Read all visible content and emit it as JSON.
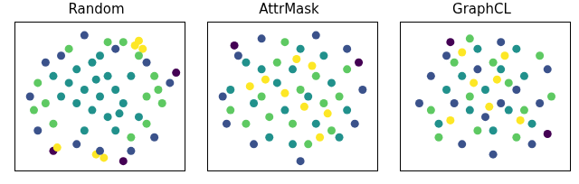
{
  "chart_data": [
    {
      "type": "scatter",
      "title": "Random",
      "xlim": [
        -110,
        110
      ],
      "ylim": [
        -110,
        110
      ],
      "tick_labels": false,
      "grid": false,
      "series": [
        {
          "color": "#21918c",
          "values": [
            [
              -30,
              40
            ],
            [
              -10,
              50
            ],
            [
              10,
              30
            ],
            [
              -20,
              10
            ],
            [
              0,
              0
            ],
            [
              20,
              10
            ],
            [
              -40,
              20
            ],
            [
              30,
              -10
            ],
            [
              10,
              -30
            ],
            [
              -10,
              -20
            ],
            [
              -30,
              -10
            ],
            [
              -50,
              0
            ],
            [
              40,
              30
            ],
            [
              0,
              60
            ],
            [
              20,
              -50
            ],
            [
              -20,
              -50
            ],
            [
              50,
              -30
            ],
            [
              -60,
              30
            ],
            [
              -5,
              25
            ],
            [
              25,
              -25
            ]
          ]
        },
        {
          "color": "#5ec962",
          "values": [
            [
              -80,
              20
            ],
            [
              -70,
              -10
            ],
            [
              -60,
              -40
            ],
            [
              60,
              0
            ],
            [
              70,
              30
            ],
            [
              80,
              -10
            ],
            [
              60,
              -40
            ],
            [
              40,
              -60
            ],
            [
              10,
              80
            ],
            [
              -40,
              70
            ],
            [
              -85,
              -20
            ],
            [
              50,
              60
            ],
            [
              30,
              80
            ],
            [
              75,
              10
            ]
          ]
        },
        {
          "color": "#3b528b",
          "values": [
            [
              -50,
              60
            ],
            [
              -70,
              50
            ],
            [
              20,
              70
            ],
            [
              60,
              50
            ],
            [
              -30,
              -70
            ],
            [
              0,
              -80
            ],
            [
              -80,
              -50
            ],
            [
              90,
              20
            ],
            [
              40,
              -80
            ],
            [
              -90,
              0
            ],
            [
              70,
              -60
            ],
            [
              -20,
              90
            ]
          ]
        },
        {
          "color": "#fde725",
          "values": [
            [
              45,
              75
            ],
            [
              55,
              70
            ],
            [
              50,
              82
            ],
            [
              -5,
              -85
            ],
            [
              5,
              -90
            ],
            [
              -55,
              -75
            ]
          ]
        },
        {
          "color": "#440154",
          "values": [
            [
              98,
              35
            ],
            [
              -60,
              -80
            ],
            [
              30,
              -95
            ]
          ]
        }
      ]
    },
    {
      "type": "scatter",
      "title": "AttrMask",
      "xlim": [
        -110,
        110
      ],
      "ylim": [
        -110,
        110
      ],
      "tick_labels": false,
      "grid": false,
      "series": [
        {
          "color": "#21918c",
          "values": [
            [
              -40,
              40
            ],
            [
              -20,
              20
            ],
            [
              0,
              40
            ],
            [
              20,
              0
            ],
            [
              -10,
              -20
            ],
            [
              30,
              -40
            ],
            [
              -50,
              -10
            ],
            [
              10,
              70
            ],
            [
              -60,
              50
            ],
            [
              50,
              20
            ],
            [
              40,
              60
            ],
            [
              -30,
              -60
            ],
            [
              0,
              -70
            ],
            [
              70,
              -20
            ],
            [
              -80,
              10
            ],
            [
              60,
              -60
            ]
          ]
        },
        {
          "color": "#5ec962",
          "values": [
            [
              -20,
              50
            ],
            [
              10,
              10
            ],
            [
              30,
              30
            ],
            [
              -40,
              0
            ],
            [
              0,
              -40
            ],
            [
              40,
              -10
            ],
            [
              -60,
              -40
            ],
            [
              20,
              -70
            ],
            [
              -10,
              80
            ],
            [
              70,
              40
            ],
            [
              -80,
              -20
            ],
            [
              60,
              0
            ],
            [
              -30,
              -30
            ],
            [
              50,
              -50
            ]
          ]
        },
        {
          "color": "#3b528b",
          "values": [
            [
              -70,
              60
            ],
            [
              -90,
              0
            ],
            [
              -50,
              -70
            ],
            [
              80,
              -40
            ],
            [
              90,
              10
            ],
            [
              30,
              90
            ],
            [
              -40,
              85
            ],
            [
              10,
              -95
            ],
            [
              70,
              70
            ],
            [
              -85,
              -40
            ]
          ]
        },
        {
          "color": "#fde725",
          "values": [
            [
              -10,
              5
            ],
            [
              15,
              -15
            ],
            [
              25,
              45
            ],
            [
              -35,
              25
            ],
            [
              45,
              -25
            ],
            [
              5,
              55
            ],
            [
              -55,
              15
            ],
            [
              35,
              -60
            ]
          ]
        },
        {
          "color": "#440154",
          "values": [
            [
              -75,
              75
            ],
            [
              85,
              50
            ]
          ]
        }
      ]
    },
    {
      "type": "scatter",
      "title": "GraphCL",
      "xlim": [
        -110,
        110
      ],
      "ylim": [
        -110,
        110
      ],
      "tick_labels": false,
      "grid": false,
      "series": [
        {
          "color": "#21918c",
          "values": [
            [
              -30,
              30
            ],
            [
              0,
              10
            ],
            [
              20,
              40
            ],
            [
              -20,
              -20
            ],
            [
              30,
              -20
            ],
            [
              -50,
              10
            ],
            [
              10,
              -50
            ],
            [
              50,
              30
            ],
            [
              -10,
              70
            ],
            [
              60,
              -40
            ],
            [
              -60,
              -40
            ],
            [
              40,
              70
            ]
          ]
        },
        {
          "color": "#3b528b",
          "values": [
            [
              -10,
              40
            ],
            [
              20,
              -10
            ],
            [
              -40,
              -10
            ],
            [
              0,
              -30
            ],
            [
              40,
              10
            ],
            [
              -70,
              30
            ],
            [
              70,
              -10
            ],
            [
              -30,
              -70
            ],
            [
              20,
              80
            ],
            [
              -50,
              60
            ],
            [
              80,
              40
            ],
            [
              10,
              -85
            ],
            [
              -85,
              -10
            ],
            [
              60,
              -70
            ]
          ]
        },
        {
          "color": "#5ec962",
          "values": [
            [
              10,
              50
            ],
            [
              -20,
              0
            ],
            [
              30,
              20
            ],
            [
              -40,
              50
            ],
            [
              50,
              -20
            ],
            [
              -10,
              -50
            ],
            [
              -70,
              -20
            ],
            [
              70,
              60
            ],
            [
              40,
              -60
            ],
            [
              -20,
              85
            ],
            [
              -60,
              -60
            ],
            [
              85,
              0
            ]
          ]
        },
        {
          "color": "#fde725",
          "values": [
            [
              -30,
              65
            ],
            [
              -15,
              20
            ],
            [
              5,
              -15
            ],
            [
              25,
              60
            ],
            [
              -45,
              -35
            ],
            [
              45,
              -35
            ],
            [
              15,
              25
            ]
          ]
        },
        {
          "color": "#440154",
          "values": [
            [
              -45,
              80
            ],
            [
              80,
              -55
            ]
          ]
        }
      ]
    }
  ]
}
